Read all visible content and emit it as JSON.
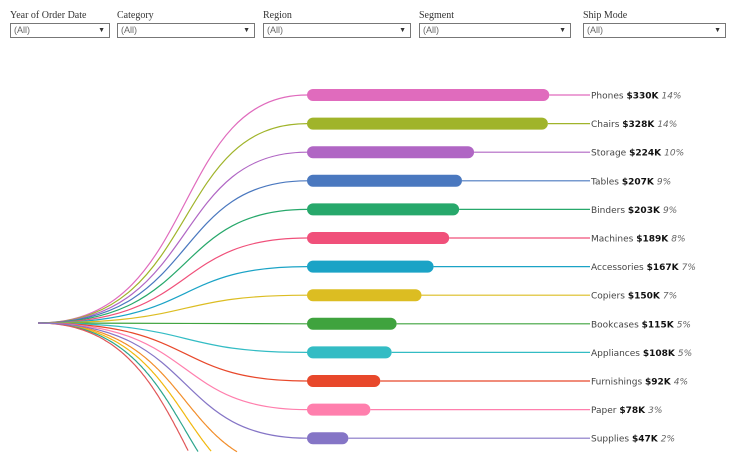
{
  "filters": [
    {
      "label": "Year of Order Date",
      "value": "(All)"
    },
    {
      "label": "Category",
      "value": "(All)"
    },
    {
      "label": "Region",
      "value": "(All)"
    },
    {
      "label": "Segment",
      "value": "(All)"
    },
    {
      "label": "Ship Mode",
      "value": "(All)"
    }
  ],
  "chart_data": {
    "type": "bar",
    "categories": [
      "Phones",
      "Chairs",
      "Storage",
      "Tables",
      "Binders",
      "Machines",
      "Accessories",
      "Copiers",
      "Bookcases",
      "Appliances",
      "Furnishings",
      "Paper",
      "Supplies"
    ],
    "values": [
      330,
      328,
      224,
      207,
      203,
      189,
      167,
      150,
      115,
      108,
      92,
      78,
      47
    ],
    "value_labels": [
      "$330K",
      "$328K",
      "$224K",
      "$207K",
      "$203K",
      "$189K",
      "$167K",
      "$150K",
      "$115K",
      "$108K",
      "$92K",
      "$78K",
      "$47K"
    ],
    "percent_labels": [
      "14%",
      "14%",
      "10%",
      "9%",
      "9%",
      "8%",
      "7%",
      "7%",
      "5%",
      "5%",
      "4%",
      "3%",
      "2%"
    ],
    "unit": "$K",
    "colors": [
      "#e06bbd",
      "#a0b42a",
      "#b066c4",
      "#4a78bf",
      "#27a86b",
      "#f0507a",
      "#1ba3c6",
      "#dcbd22",
      "#3fa33e",
      "#33bcc4",
      "#e8482b",
      "#ff7fad",
      "#8575c6"
    ],
    "offscreen_curve_colors": [
      "#f28e2b",
      "#f1b80f",
      "#2ca58d",
      "#e15759"
    ]
  }
}
